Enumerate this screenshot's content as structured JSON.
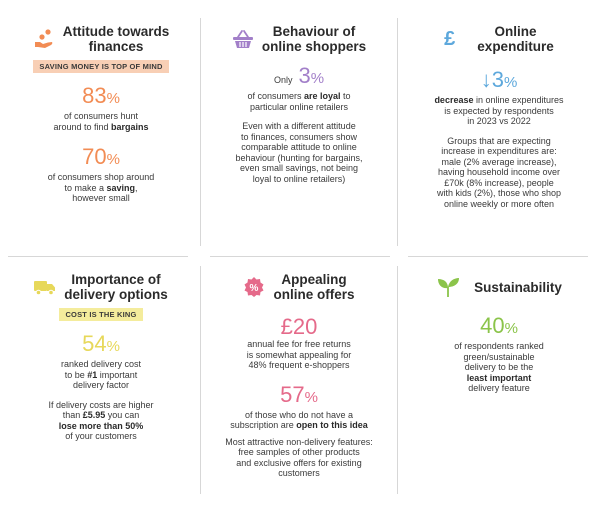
{
  "colors": {
    "orange": "#f28c54",
    "purple": "#a27fc9",
    "blue": "#5da8dc",
    "yellow": "#e7d85a",
    "pink": "#e56a8a",
    "green": "#8bc44a",
    "badge_orange": "#f8cfb5",
    "badge_yellow": "#f4ec9c"
  },
  "cards": {
    "attitude": {
      "icon": "piggy-coins-icon",
      "title_l1": "Attitude towards",
      "title_l2": "finances",
      "badge": "SAVING MONEY IS TOP OF MIND",
      "stat1_num": "83",
      "stat1_pct": "%",
      "stat1_l1": "of consumers hunt",
      "stat1_l2_a": "around to find ",
      "stat1_l2_b": "bargains",
      "stat2_num": "70",
      "stat2_pct": "%",
      "stat2_l1": "of consumers shop around",
      "stat2_l2_a": "to make a ",
      "stat2_l2_b": "saving",
      "stat2_l2_c": ",",
      "stat2_l3": "however small"
    },
    "behaviour": {
      "icon": "shopping-basket-icon",
      "title_l1": "Behaviour of",
      "title_l2": "online shoppers",
      "only": "Only",
      "stat_num": "3",
      "stat_pct": "%",
      "stat_l1_a": "of consumers ",
      "stat_l1_b": "are loyal",
      "stat_l1_c": " to",
      "stat_l2": "particular online retailers",
      "para": [
        "Even with a different attitude",
        "to finances, consumers show",
        "comparable attitude to online",
        "behaviour (hunting for bargains,",
        "even small savings, not being",
        "loyal to online retailers)"
      ]
    },
    "expenditure": {
      "icon": "pound-sign-icon",
      "icon_glyph": "£",
      "title_l1": "Online",
      "title_l2": "expenditure",
      "stat_arrow": "↓",
      "stat_num": "3",
      "stat_pct": "%",
      "stat_l1_a": "decrease",
      "stat_l1_b": " in online expenditures",
      "stat_l2": "is expected by respondents",
      "stat_l3": "in 2023 vs 2022",
      "para": [
        "Groups that are expecting",
        "increase in expenditures are:",
        "male (2% average increase),",
        "having household income over",
        "£70k (8% increase), people",
        "with kids (2%), those who shop",
        "online weekly or more often"
      ]
    },
    "delivery": {
      "icon": "delivery-truck-icon",
      "title_l1": "Importance of",
      "title_l2": "delivery options",
      "badge": "COST IS THE KING",
      "stat_num": "54",
      "stat_pct": "%",
      "stat_l1": "ranked delivery cost",
      "stat_l2_a": "to be ",
      "stat_l2_b": "#1",
      "stat_l2_c": " important",
      "stat_l3": "delivery factor",
      "p_l1": "If delivery costs are higher",
      "p_l2_a": "than ",
      "p_l2_b": "£5.95",
      "p_l2_c": " you can",
      "p_l3_a": "lose more than 50%",
      "p_l4": "of your customers"
    },
    "offers": {
      "icon": "percent-badge-icon",
      "icon_glyph": "%",
      "title_l1": "Appealing",
      "title_l2": "online offers",
      "stat1_num": "£20",
      "stat1_l1": "annual fee for free returns",
      "stat1_l2": "is somewhat appealing for",
      "stat1_l3": "48% frequent e-shoppers",
      "stat2_num": "57",
      "stat2_pct": "%",
      "stat2_l1": "of those who do not have a",
      "stat2_l2_a": "subscription are ",
      "stat2_l2_b": "open to this idea",
      "para": [
        "Most attractive non-delivery features:",
        "free samples of other products",
        "and exclusive offers for existing",
        "customers"
      ]
    },
    "sustainability": {
      "icon": "sprout-leaf-icon",
      "title": "Sustainability",
      "stat_num": "40",
      "stat_pct": "%",
      "stat_l1": "of respondents ranked",
      "stat_l2": "green/sustainable",
      "stat_l3": "delivery to be the",
      "stat_l4": "least important",
      "stat_l5": "delivery feature"
    }
  }
}
